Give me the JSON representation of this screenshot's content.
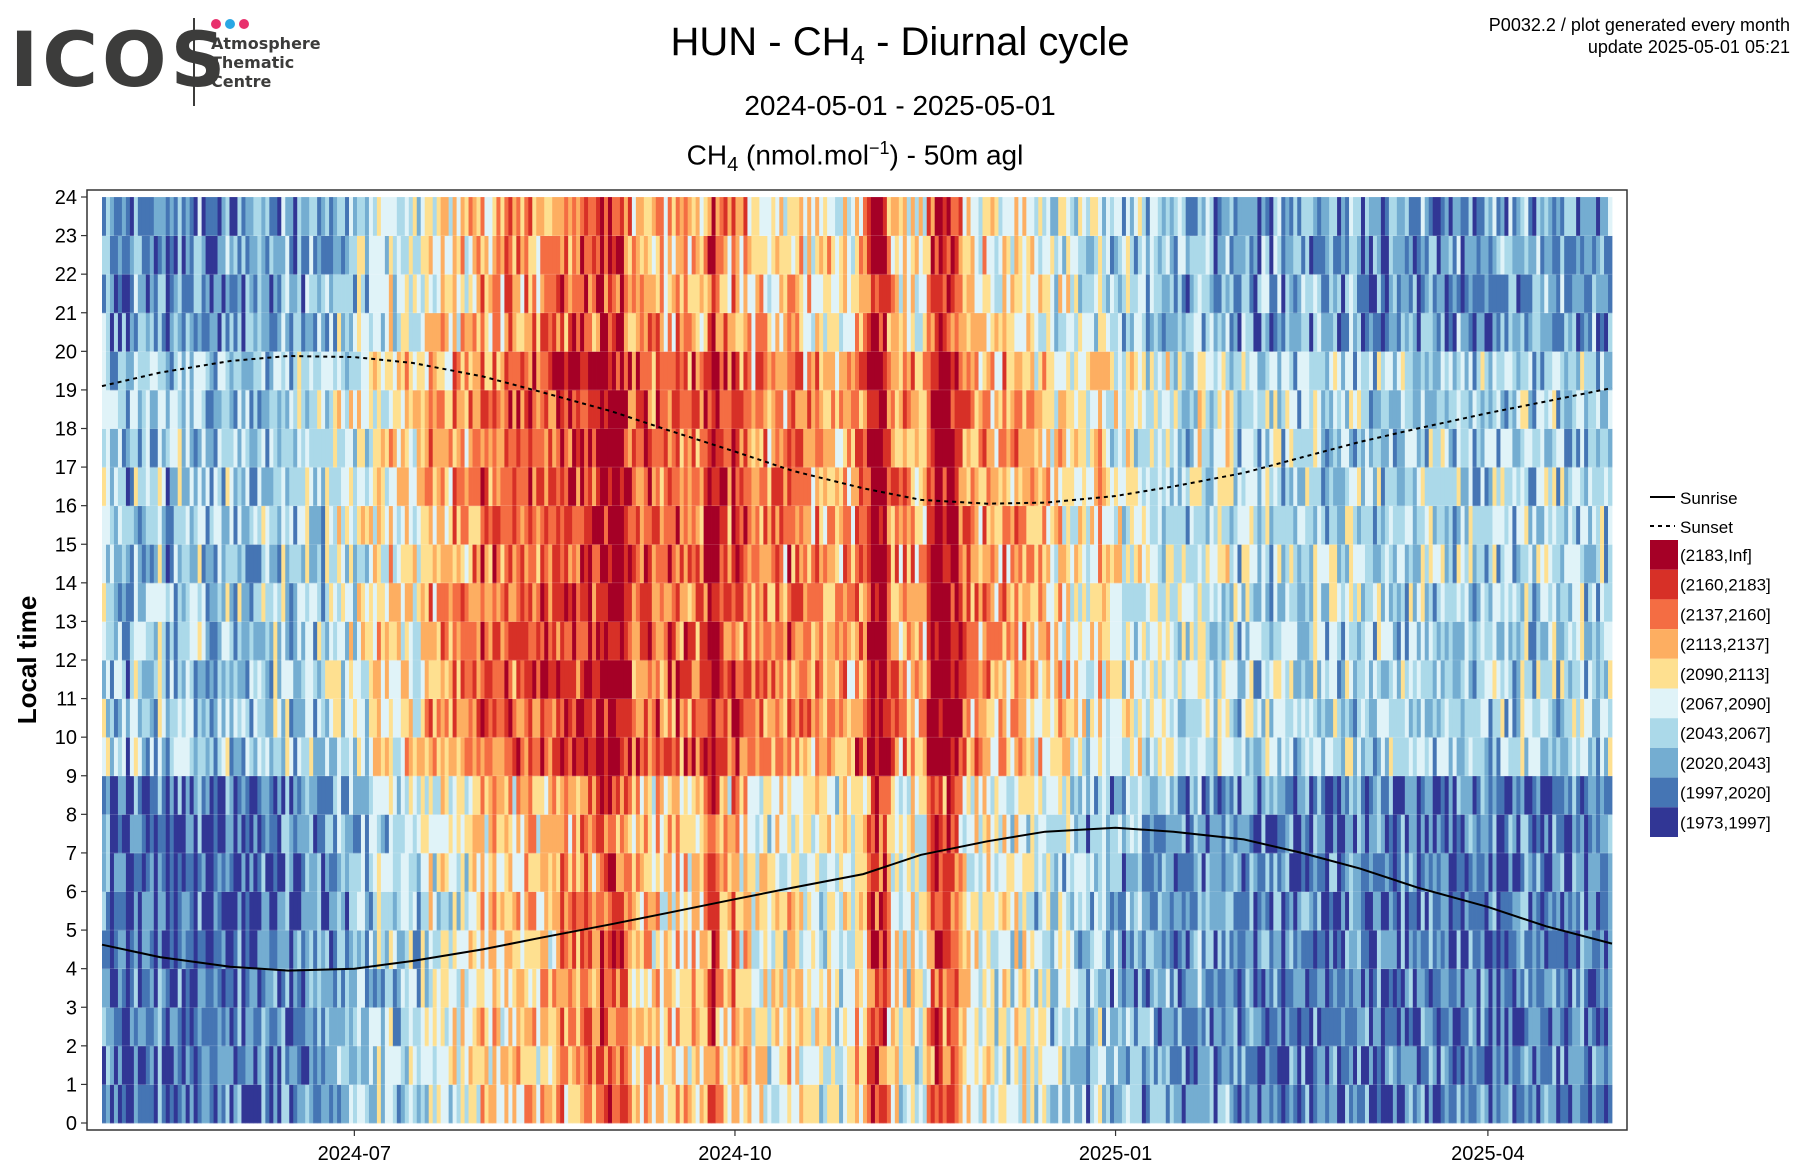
{
  "logo": {
    "wordmark": "ICOS",
    "subtitle_lines": "Atmosphere\nThematic\nCentre",
    "dot_colors": [
      "#e8316d",
      "#2aa7e4",
      "#e8316d"
    ]
  },
  "meta": {
    "product": "P0032.2 / plot generated every month",
    "update": "update  2025-05-01 05:21"
  },
  "header": {
    "title_prefix": "HUN - CH",
    "title_sub": "4",
    "title_suffix": " - Diurnal cycle",
    "date_range": "2024-05-01 - 2025-05-01",
    "species_prefix": "CH",
    "species_sub": "4",
    "species_unit": " (nmol.mol",
    "species_unit_sup": "−1",
    "species_suffix": ") - 50m agl"
  },
  "chart_data": {
    "type": "heatmap",
    "xlabel": "",
    "ylabel": "Local time",
    "x_range": [
      "2024-05-01",
      "2025-05-01"
    ],
    "x_tick_labels": [
      "2024-07",
      "2024-10",
      "2025-01",
      "2025-04"
    ],
    "x_tick_dates": [
      "2024-07-01",
      "2024-10-01",
      "2025-01-01",
      "2025-04-01"
    ],
    "ylim": [
      0,
      24
    ],
    "y_ticks": [
      0,
      1,
      2,
      3,
      4,
      5,
      6,
      7,
      8,
      9,
      10,
      11,
      12,
      13,
      14,
      15,
      16,
      17,
      18,
      19,
      20,
      21,
      22,
      23,
      24
    ],
    "grid": true,
    "legend_position": "right",
    "bins": [
      {
        "label": "(2183,Inf]",
        "color": "#a50026"
      },
      {
        "label": "(2160,2183]",
        "color": "#d73027"
      },
      {
        "label": "(2137,2160]",
        "color": "#f46d43"
      },
      {
        "label": "(2113,2137]",
        "color": "#fdae61"
      },
      {
        "label": "(2090,2113]",
        "color": "#fee090"
      },
      {
        "label": "(2067,2090]",
        "color": "#e0f3f8"
      },
      {
        "label": "(2043,2067]",
        "color": "#abd9e9"
      },
      {
        "label": "(2020,2043]",
        "color": "#74add1"
      },
      {
        "label": "(1997,2020]",
        "color": "#4575b4"
      },
      {
        "label": "(1973,1997]",
        "color": "#313695"
      }
    ],
    "series": [
      {
        "name": "Sunrise",
        "style": "solid",
        "x": [
          "2024-05-01",
          "2024-05-15",
          "2024-06-01",
          "2024-06-15",
          "2024-07-01",
          "2024-07-15",
          "2024-08-01",
          "2024-08-15",
          "2024-09-01",
          "2024-09-15",
          "2024-10-01",
          "2024-10-15",
          "2024-11-01",
          "2024-11-15",
          "2024-12-01",
          "2024-12-15",
          "2025-01-01",
          "2025-01-15",
          "2025-02-01",
          "2025-02-15",
          "2025-03-01",
          "2025-03-15",
          "2025-04-01",
          "2025-04-15",
          "2025-05-01"
        ],
        "y": [
          4.62,
          4.3,
          4.05,
          3.95,
          4.0,
          4.2,
          4.5,
          4.8,
          5.15,
          5.45,
          5.8,
          6.1,
          6.45,
          6.95,
          7.3,
          7.55,
          7.65,
          7.55,
          7.35,
          7.0,
          6.6,
          6.1,
          5.6,
          5.1,
          4.65
        ]
      },
      {
        "name": "Sunset",
        "style": "dashed",
        "x": [
          "2024-05-01",
          "2024-05-15",
          "2024-06-01",
          "2024-06-15",
          "2024-07-01",
          "2024-07-15",
          "2024-08-01",
          "2024-08-15",
          "2024-09-01",
          "2024-09-15",
          "2024-10-01",
          "2024-10-15",
          "2024-11-01",
          "2024-11-15",
          "2024-12-01",
          "2024-12-15",
          "2025-01-01",
          "2025-01-15",
          "2025-02-01",
          "2025-02-15",
          "2025-03-01",
          "2025-03-15",
          "2025-04-01",
          "2025-04-15",
          "2025-05-01"
        ],
        "y": [
          19.1,
          19.45,
          19.75,
          19.88,
          19.85,
          19.7,
          19.35,
          18.95,
          18.45,
          17.95,
          17.4,
          16.9,
          16.45,
          16.15,
          16.05,
          16.08,
          16.25,
          16.5,
          16.85,
          17.25,
          17.65,
          18.0,
          18.4,
          18.7,
          19.05
        ]
      }
    ],
    "daily_mean_bins_note": "",
    "day_bin_profile": [
      6,
      6,
      7,
      7,
      7,
      7,
      8,
      7,
      6,
      7,
      7,
      7,
      7,
      7,
      6,
      7,
      8,
      7,
      7,
      6,
      7,
      7,
      7,
      7,
      6,
      7,
      7,
      8,
      7,
      7,
      7,
      6,
      7,
      7,
      6,
      7,
      7,
      7,
      7,
      7,
      6,
      7,
      7,
      6,
      7,
      6,
      6,
      7,
      7,
      6,
      7,
      6,
      6,
      7,
      6,
      7,
      6,
      6,
      6,
      5,
      6,
      6,
      5,
      6,
      5,
      5,
      6,
      5,
      5,
      4,
      5,
      5,
      4,
      5,
      5,
      5,
      4,
      4,
      5,
      5,
      4,
      4,
      3,
      4,
      4,
      3,
      4,
      4,
      3,
      4,
      3,
      4,
      3,
      3,
      3,
      2,
      3,
      3,
      2,
      3,
      3,
      2,
      2,
      3,
      2,
      3,
      2,
      2,
      2,
      3,
      2,
      2,
      3,
      2,
      2,
      1,
      2,
      2,
      1,
      2,
      1,
      1,
      1,
      2,
      1,
      0,
      1,
      0,
      0,
      1,
      0,
      1,
      2,
      3,
      2,
      3,
      2,
      2,
      3,
      2,
      3,
      3,
      2,
      3,
      2,
      3,
      2,
      3,
      2,
      3,
      3,
      2,
      1,
      0,
      1,
      2,
      2,
      3,
      1,
      2,
      3,
      2,
      3,
      4,
      3,
      3,
      3,
      4,
      3,
      3,
      3,
      4,
      2,
      3,
      3,
      3,
      4,
      3,
      4,
      3,
      4,
      4,
      3,
      4,
      4,
      4,
      3,
      4,
      4,
      2,
      3,
      3,
      1,
      0,
      0,
      0,
      0,
      2,
      3,
      3,
      4,
      3,
      4,
      3,
      4,
      4,
      4,
      2,
      1,
      0,
      0,
      1,
      0,
      1,
      1,
      2,
      3,
      3,
      4,
      3,
      4,
      3,
      3,
      4,
      4,
      4,
      3,
      4,
      4,
      3,
      4,
      3,
      4,
      4,
      5,
      4,
      4,
      4,
      5,
      5,
      4,
      5,
      4,
      5,
      5,
      5,
      5,
      6,
      5,
      5,
      4,
      5,
      5,
      6,
      5,
      5,
      6,
      5,
      5,
      6,
      5,
      6,
      6,
      5,
      6,
      6,
      6,
      5,
      6,
      6,
      6,
      6,
      7,
      6,
      6,
      5,
      6,
      6,
      6,
      7,
      6,
      6,
      5,
      6,
      6,
      7,
      6,
      6,
      6,
      7,
      7,
      6,
      6,
      7,
      6,
      6,
      7,
      6,
      6,
      7,
      7,
      6,
      6,
      7,
      6,
      6,
      7,
      7,
      6,
      6,
      7,
      7,
      6,
      6,
      7,
      6,
      7,
      6,
      7,
      7,
      6,
      7,
      7,
      6,
      7,
      7,
      6,
      7,
      6,
      7,
      7,
      6,
      7,
      6,
      7,
      7,
      6,
      7,
      7,
      7,
      6,
      7,
      7,
      6,
      7,
      7,
      6,
      7,
      7,
      6,
      7,
      6,
      7,
      6,
      7,
      7,
      6,
      6,
      7,
      7,
      6,
      7,
      6,
      7,
      6,
      7,
      6,
      7,
      7,
      6,
      7,
      6,
      7,
      7,
      6,
      7,
      6,
      7,
      6
    ]
  },
  "legend": {
    "sunrise_label": "Sunrise",
    "sunset_label": "Sunset"
  }
}
